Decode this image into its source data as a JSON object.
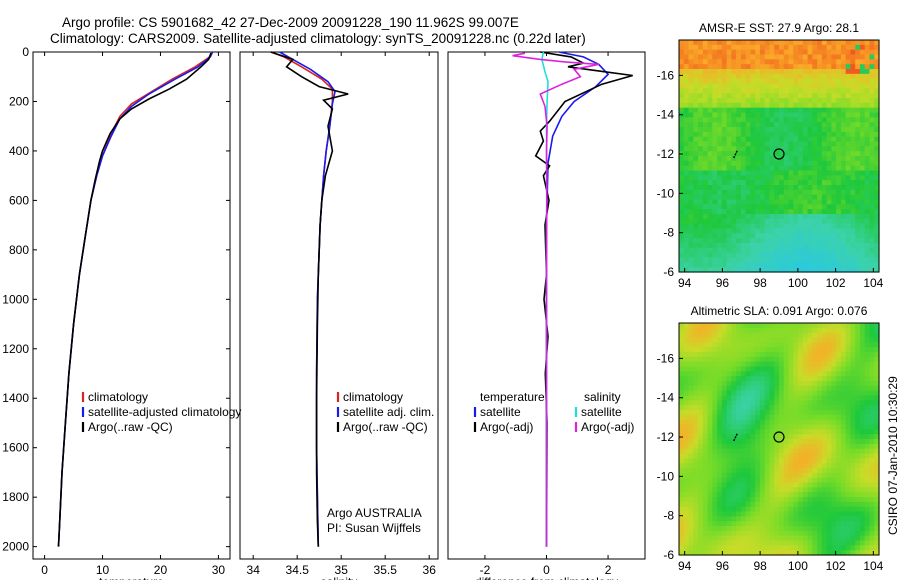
{
  "title_line1": "Argo profile: CS 5901682_42 27-Dec-2009 20091228_190 11.962S 99.007E",
  "title_line2": "Climatology: CARS2009. Satellite-adjusted climatology: synTS_20091228.nc (0.22d later)",
  "footer": "CSIRO 07-Jan-2010 10:30:29",
  "colors": {
    "red": "#dd2222",
    "blue": "#1a1aee",
    "black": "#000000",
    "cyan": "#22dddd",
    "magenta": "#dd22dd"
  },
  "chart_data": [
    {
      "type": "line",
      "id": "temperature",
      "xlabel": "temperature",
      "ylabel": "",
      "xlim": [
        -2,
        32
      ],
      "ylim": [
        2050,
        0
      ],
      "xticks": [
        "0",
        "10",
        "20",
        "30"
      ],
      "xtick_values": [
        0,
        10,
        20,
        30
      ],
      "yticks": [
        "0",
        "200",
        "400",
        "600",
        "800",
        "1000",
        "1200",
        "1400",
        "1600",
        "1800",
        "2000"
      ],
      "ytick_values": [
        0,
        200,
        400,
        600,
        800,
        1000,
        1200,
        1400,
        1600,
        1800,
        2000
      ],
      "legend": [
        "climatology",
        "satellite-adjusted climatology",
        "Argo(..raw -QC)"
      ],
      "series": [
        {
          "name": "climatology",
          "color": "red",
          "pts": [
            [
              28.8,
              0
            ],
            [
              28.5,
              20
            ],
            [
              26,
              60
            ],
            [
              22,
              110
            ],
            [
              18.5,
              160
            ],
            [
              15,
              210
            ],
            [
              13,
              260
            ],
            [
              11.5,
              330
            ],
            [
              10,
              420
            ],
            [
              9,
              500
            ],
            [
              8,
              600
            ],
            [
              7,
              750
            ],
            [
              6,
              900
            ],
            [
              5,
              1100
            ],
            [
              4.2,
              1300
            ],
            [
              3.6,
              1500
            ],
            [
              3,
              1700
            ],
            [
              2.6,
              1900
            ],
            [
              2.4,
              2000
            ]
          ]
        },
        {
          "name": "satellite-adjusted climatology",
          "color": "blue",
          "pts": [
            [
              29,
              0
            ],
            [
              28.6,
              20
            ],
            [
              26.5,
              60
            ],
            [
              22.5,
              110
            ],
            [
              18,
              170
            ],
            [
              15,
              220
            ],
            [
              13,
              270
            ],
            [
              11.5,
              340
            ],
            [
              10,
              420
            ],
            [
              9,
              500
            ],
            [
              8,
              600
            ],
            [
              7,
              750
            ],
            [
              6,
              900
            ],
            [
              5,
              1100
            ],
            [
              4.2,
              1300
            ],
            [
              3.6,
              1500
            ],
            [
              3,
              1700
            ],
            [
              2.6,
              1900
            ],
            [
              2.4,
              2000
            ]
          ]
        },
        {
          "name": "Argo(..raw -QC)",
          "color": "black",
          "pts": [
            [
              28.7,
              5
            ],
            [
              28.3,
              30
            ],
            [
              27,
              60
            ],
            [
              24.5,
              110
            ],
            [
              21.5,
              150
            ],
            [
              18,
              190
            ],
            [
              15,
              230
            ],
            [
              13,
              270
            ],
            [
              11.3,
              330
            ],
            [
              10,
              400
            ],
            [
              9.5,
              440
            ],
            [
              8.7,
              520
            ],
            [
              8,
              600
            ],
            [
              7,
              750
            ],
            [
              6,
              900
            ],
            [
              5,
              1100
            ],
            [
              4.2,
              1300
            ],
            [
              3.6,
              1500
            ],
            [
              3,
              1700
            ],
            [
              2.6,
              1900
            ],
            [
              2.4,
              2000
            ]
          ]
        }
      ]
    },
    {
      "type": "line",
      "id": "salinity",
      "xlabel": "salinity",
      "xlim": [
        33.85,
        36.1
      ],
      "ylim": [
        2050,
        0
      ],
      "xticks": [
        "34",
        "34.5",
        "35",
        "35.5",
        "36"
      ],
      "xtick_values": [
        34,
        34.5,
        35,
        35.5,
        36
      ],
      "legend": [
        "climatology",
        "satellite adj. clim.",
        "Argo(..raw -QC)"
      ],
      "annotation": [
        "Argo AUSTRALIA",
        "PI: Susan Wijffels"
      ],
      "series": [
        {
          "name": "climatology",
          "color": "red",
          "pts": [
            [
              34.2,
              0
            ],
            [
              34.35,
              20
            ],
            [
              34.55,
              60
            ],
            [
              34.78,
              110
            ],
            [
              34.9,
              150
            ],
            [
              34.9,
              200
            ],
            [
              34.87,
              300
            ],
            [
              34.83,
              400
            ],
            [
              34.8,
              500
            ],
            [
              34.76,
              700
            ],
            [
              34.73,
              1000
            ],
            [
              34.72,
              1300
            ],
            [
              34.72,
              1600
            ],
            [
              34.73,
              1800
            ],
            [
              34.74,
              2000
            ]
          ]
        },
        {
          "name": "satellite adj. clim.",
          "color": "blue",
          "pts": [
            [
              34.3,
              0
            ],
            [
              34.45,
              30
            ],
            [
              34.65,
              70
            ],
            [
              34.85,
              120
            ],
            [
              34.93,
              160
            ],
            [
              34.9,
              210
            ],
            [
              34.87,
              300
            ],
            [
              34.83,
              400
            ],
            [
              34.8,
              500
            ],
            [
              34.76,
              700
            ],
            [
              34.73,
              1000
            ],
            [
              34.72,
              1300
            ],
            [
              34.72,
              1600
            ],
            [
              34.73,
              1800
            ],
            [
              34.74,
              2000
            ]
          ]
        },
        {
          "name": "Argo(..raw -QC)",
          "color": "black",
          "pts": [
            [
              34.2,
              0
            ],
            [
              34.45,
              30
            ],
            [
              34.38,
              60
            ],
            [
              34.55,
              100
            ],
            [
              34.75,
              140
            ],
            [
              35.08,
              170
            ],
            [
              34.8,
              195
            ],
            [
              34.9,
              230
            ],
            [
              34.85,
              300
            ],
            [
              34.9,
              400
            ],
            [
              34.82,
              500
            ],
            [
              34.78,
              600
            ],
            [
              34.76,
              700
            ],
            [
              34.74,
              900
            ],
            [
              34.73,
              1100
            ],
            [
              34.72,
              1400
            ],
            [
              34.72,
              1700
            ],
            [
              34.73,
              1900
            ],
            [
              34.74,
              2000
            ]
          ]
        }
      ]
    },
    {
      "type": "line",
      "id": "difference",
      "xlabel": "difference from climatology",
      "xlim": [
        -3.2,
        3.2
      ],
      "ylim": [
        2050,
        0
      ],
      "xticks": [
        "-2",
        "0",
        "2"
      ],
      "xtick_values": [
        -2,
        0,
        2
      ],
      "legend_left_title": "temperature",
      "legend_right_title": "salinity",
      "legend_left": [
        "satellite",
        "Argo(-adj)"
      ],
      "legend_right": [
        "satellite",
        "Argo(-adj)"
      ],
      "series": [
        {
          "name": "temperature satellite",
          "color": "blue",
          "pts": [
            [
              0.4,
              0
            ],
            [
              1.2,
              20
            ],
            [
              1.7,
              50
            ],
            [
              2.0,
              90
            ],
            [
              1.6,
              140
            ],
            [
              0.9,
              200
            ],
            [
              0.5,
              260
            ],
            [
              0.2,
              340
            ],
            [
              0.05,
              450
            ],
            [
              0,
              700
            ],
            [
              0,
              2000
            ]
          ]
        },
        {
          "name": "temperature Argo(-adj)",
          "color": "black",
          "pts": [
            [
              -0.2,
              0
            ],
            [
              0.8,
              20
            ],
            [
              1.2,
              45
            ],
            [
              0.7,
              60
            ],
            [
              1.9,
              80
            ],
            [
              2.8,
              95
            ],
            [
              1.8,
              130
            ],
            [
              0.6,
              200
            ],
            [
              0.1,
              280
            ],
            [
              -0.2,
              320
            ],
            [
              -0.1,
              360
            ],
            [
              -0.35,
              420
            ],
            [
              0.1,
              460
            ],
            [
              -0.1,
              500
            ],
            [
              0.08,
              600
            ],
            [
              -0.05,
              700
            ],
            [
              0,
              900
            ],
            [
              -0.08,
              1000
            ],
            [
              0.05,
              1150
            ],
            [
              -0.04,
              1300
            ],
            [
              0.02,
              1500
            ],
            [
              0,
              2000
            ]
          ]
        },
        {
          "name": "salinity satellite",
          "color": "cyan",
          "pts": [
            [
              -0.1,
              0
            ],
            [
              -0.15,
              30
            ],
            [
              -0.05,
              80
            ],
            [
              0.05,
              120
            ],
            [
              0.02,
              200
            ],
            [
              0,
              300
            ],
            [
              0.01,
              500
            ],
            [
              0,
              800
            ],
            [
              0,
              1100
            ],
            [
              0.01,
              1500
            ],
            [
              0,
              1800
            ],
            [
              0,
              2000
            ]
          ]
        },
        {
          "name": "salinity Argo(-adj)",
          "color": "magenta",
          "pts": [
            [
              -0.7,
              5
            ],
            [
              -1.1,
              15
            ],
            [
              -0.2,
              30
            ],
            [
              0.6,
              40
            ],
            [
              1.7,
              50
            ],
            [
              0.9,
              70
            ],
            [
              1.1,
              100
            ],
            [
              0.5,
              130
            ],
            [
              -0.2,
              170
            ],
            [
              -0.05,
              220
            ],
            [
              0.02,
              300
            ],
            [
              0,
              400
            ],
            [
              0.01,
              600
            ],
            [
              0,
              900
            ],
            [
              0,
              1300
            ],
            [
              0,
              2000
            ]
          ]
        }
      ]
    },
    {
      "type": "heatmap",
      "id": "sst",
      "title": "AMSR-E SST: 27.9 Argo: 28.1",
      "xlim": [
        93.7,
        104.3
      ],
      "ylim": [
        -6,
        -17.8
      ],
      "xticks": [
        "94",
        "96",
        "98",
        "100",
        "102",
        "104"
      ],
      "xtick_values": [
        94,
        96,
        98,
        100,
        102,
        104
      ],
      "yticks": [
        "-6",
        "-8",
        "-10",
        "-12",
        "-14",
        "-16"
      ],
      "ytick_values": [
        -6,
        -8,
        -10,
        -12,
        -14,
        -16
      ],
      "marker": {
        "lon": 99.0,
        "lat": -12.0
      },
      "track": [
        [
          96.6,
          -11.8
        ],
        [
          96.8,
          -12.2
        ]
      ]
    },
    {
      "type": "heatmap",
      "id": "sla",
      "title": "Altimetric SLA: 0.091 Argo: 0.076",
      "xlim": [
        93.7,
        104.3
      ],
      "ylim": [
        -6,
        -17.8
      ],
      "xticks": [
        "94",
        "96",
        "98",
        "100",
        "102",
        "104"
      ],
      "xtick_values": [
        94,
        96,
        98,
        100,
        102,
        104
      ],
      "yticks": [
        "-6",
        "-8",
        "-10",
        "-12",
        "-14",
        "-16"
      ],
      "ytick_values": [
        -6,
        -8,
        -10,
        -12,
        -14,
        -16
      ],
      "marker": {
        "lon": 99.0,
        "lat": -12.0
      },
      "track": [
        [
          96.6,
          -11.8
        ],
        [
          96.8,
          -12.2
        ]
      ]
    }
  ]
}
